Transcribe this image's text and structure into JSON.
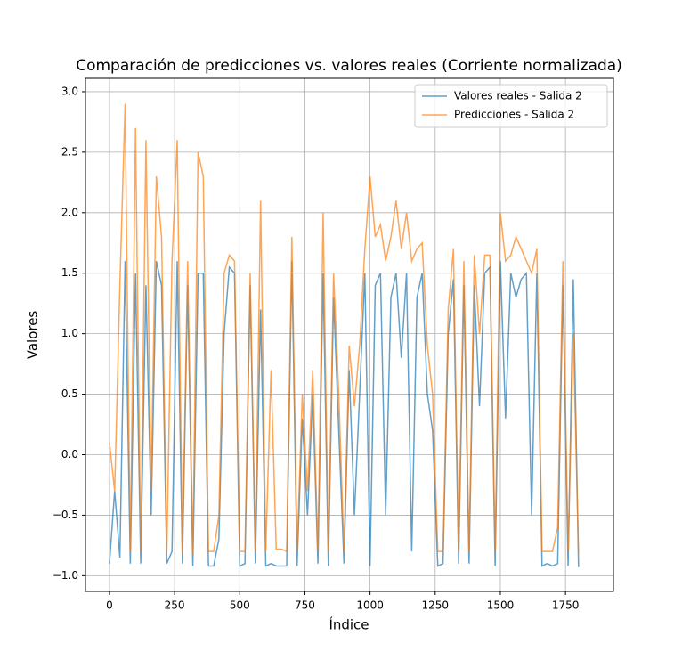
{
  "chart_data": {
    "type": "line",
    "title": "Comparación de predicciones vs. valores reales (Corriente normalizada)",
    "xlabel": "Índice",
    "ylabel": "Valores",
    "x": [
      0,
      20,
      40,
      60,
      80,
      100,
      120,
      140,
      160,
      180,
      200,
      220,
      240,
      260,
      280,
      300,
      320,
      340,
      360,
      380,
      400,
      420,
      440,
      460,
      480,
      500,
      520,
      540,
      560,
      580,
      600,
      620,
      640,
      660,
      680,
      700,
      720,
      740,
      760,
      780,
      800,
      820,
      840,
      860,
      880,
      900,
      920,
      940,
      960,
      980,
      1000,
      1020,
      1040,
      1060,
      1080,
      1100,
      1120,
      1140,
      1160,
      1180,
      1200,
      1220,
      1240,
      1260,
      1280,
      1300,
      1320,
      1340,
      1360,
      1380,
      1400,
      1420,
      1440,
      1460,
      1480,
      1500,
      1520,
      1540,
      1560,
      1580,
      1600,
      1620,
      1640,
      1660,
      1680,
      1700,
      1720,
      1740,
      1760,
      1780,
      1800
    ],
    "series": [
      {
        "name": "Valores reales - Salida 2",
        "color": "#1f77b4",
        "values": [
          -0.9,
          -0.3,
          -0.85,
          1.6,
          -0.9,
          1.5,
          -0.9,
          1.4,
          -0.5,
          1.6,
          1.4,
          -0.9,
          -0.8,
          1.6,
          -0.9,
          1.4,
          -0.92,
          1.5,
          1.5,
          -0.92,
          -0.92,
          -0.7,
          1.0,
          1.55,
          1.5,
          -0.92,
          -0.9,
          1.4,
          -0.9,
          1.2,
          -0.92,
          -0.9,
          -0.92,
          -0.92,
          -0.92,
          1.6,
          -0.92,
          0.3,
          -0.5,
          0.5,
          -0.9,
          1.5,
          -0.92,
          1.3,
          0.2,
          -0.9,
          0.7,
          -0.5,
          0.5,
          1.5,
          -0.92,
          1.4,
          1.5,
          -0.5,
          1.3,
          1.5,
          0.8,
          1.5,
          -0.8,
          1.3,
          1.5,
          0.5,
          0.2,
          -0.92,
          -0.9,
          1.0,
          1.45,
          -0.9,
          1.4,
          -0.9,
          1.4,
          0.4,
          1.5,
          1.55,
          -0.92,
          1.6,
          0.3,
          1.5,
          1.3,
          1.45,
          1.5,
          -0.5,
          1.5,
          -0.92,
          -0.9,
          -0.92,
          -0.9,
          1.4,
          -0.92,
          1.45,
          -0.93
        ]
      },
      {
        "name": "Predicciones - Salida 2",
        "color": "#ff7f0e",
        "values": [
          0.1,
          -0.3,
          1.4,
          2.9,
          -0.8,
          2.7,
          -0.8,
          2.6,
          -0.3,
          2.3,
          1.8,
          -0.82,
          1.6,
          2.6,
          -0.82,
          1.6,
          -0.82,
          2.5,
          2.3,
          -0.8,
          -0.8,
          -0.5,
          1.5,
          1.65,
          1.6,
          -0.8,
          -0.8,
          1.5,
          -0.8,
          2.1,
          -0.8,
          0.7,
          -0.78,
          -0.78,
          -0.8,
          1.8,
          -0.8,
          0.5,
          -0.3,
          0.7,
          -0.8,
          2.0,
          -0.8,
          1.5,
          0.5,
          -0.8,
          0.9,
          0.4,
          0.9,
          1.7,
          2.3,
          1.8,
          1.9,
          1.6,
          1.8,
          2.1,
          1.7,
          2.0,
          1.6,
          1.7,
          1.75,
          0.9,
          0.5,
          -0.8,
          -0.8,
          1.2,
          1.7,
          -0.8,
          1.6,
          -0.8,
          1.65,
          1.0,
          1.65,
          1.65,
          -0.8,
          2.0,
          1.6,
          1.65,
          1.8,
          1.7,
          1.6,
          1.5,
          1.7,
          -0.8,
          -0.8,
          -0.8,
          -0.6,
          1.6,
          -0.8,
          1.0,
          -0.82
        ]
      }
    ],
    "xlim": [
      -92,
      1934
    ],
    "ylim": [
      -1.13,
      3.11
    ],
    "xticks": [
      0,
      250,
      500,
      750,
      1000,
      1250,
      1500,
      1750
    ],
    "yticks": [
      {
        "value": -1.0,
        "label": "−1.0"
      },
      {
        "value": -0.5,
        "label": "−0.5"
      },
      {
        "value": 0.0,
        "label": "0.0"
      },
      {
        "value": 0.5,
        "label": "0.5"
      },
      {
        "value": 1.0,
        "label": "1.0"
      },
      {
        "value": 1.5,
        "label": "1.5"
      },
      {
        "value": 2.0,
        "label": "2.0"
      },
      {
        "value": 2.5,
        "label": "2.5"
      },
      {
        "value": 3.0,
        "label": "3.0"
      }
    ],
    "grid": true,
    "legend": "upper right"
  }
}
